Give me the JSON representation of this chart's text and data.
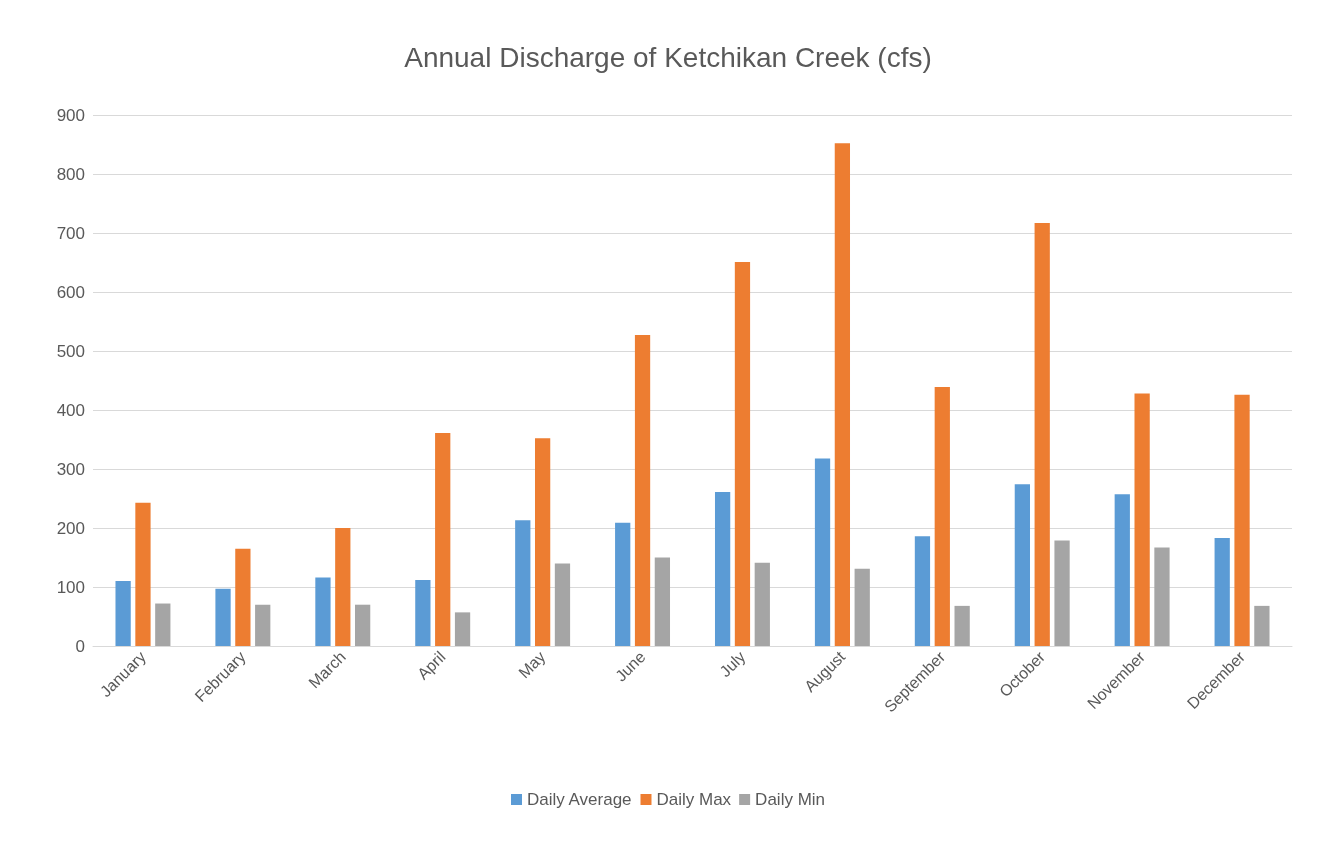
{
  "chart_data": {
    "type": "bar",
    "title": "Annual Discharge of Ketchikan Creek (cfs)",
    "categories": [
      "January",
      "February",
      "March",
      "April",
      "May",
      "June",
      "July",
      "August",
      "September",
      "October",
      "November",
      "December"
    ],
    "series": [
      {
        "name": "Daily Average",
        "color": "#5b9bd5",
        "values": [
          110,
          97,
          116,
          112,
          213,
          209,
          261,
          318,
          186,
          274,
          257,
          183
        ]
      },
      {
        "name": "Daily Max",
        "color": "#ed7d31",
        "values": [
          243,
          165,
          200,
          361,
          352,
          527,
          651,
          852,
          439,
          717,
          428,
          426
        ]
      },
      {
        "name": "Daily Min",
        "color": "#a5a5a5",
        "values": [
          72,
          70,
          70,
          57,
          140,
          150,
          141,
          131,
          68,
          179,
          167,
          68
        ]
      }
    ],
    "ylim": [
      0,
      900
    ],
    "yticks": [
      0,
      100,
      200,
      300,
      400,
      500,
      600,
      700,
      800,
      900
    ],
    "grid": "y",
    "legend": "bottom"
  }
}
